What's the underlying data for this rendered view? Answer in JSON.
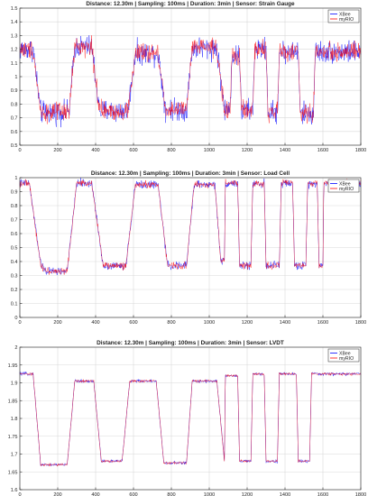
{
  "chart_data": [
    {
      "type": "line",
      "title": "Distance: 12.30m | Sampling: 100ms | Duration: 3min | Sensor: Strain Gauge",
      "xlabel": "",
      "ylabel": "",
      "xlim": [
        0,
        1800
      ],
      "ylim": [
        0.5,
        1.5
      ],
      "xticks": [
        0,
        200,
        400,
        600,
        800,
        1000,
        1200,
        1400,
        1600,
        1800
      ],
      "yticks": [
        0.5,
        0.6,
        0.7,
        0.8,
        0.9,
        1,
        1.1,
        1.2,
        1.3,
        1.4,
        1.5
      ],
      "grid": true,
      "legend": "top-right",
      "series": [
        {
          "name": "XBee",
          "color": "#0000ff"
        },
        {
          "name": "myRIO",
          "color": "#ff0000"
        }
      ],
      "noise": 0.07,
      "profile": [
        [
          0,
          1.2
        ],
        [
          70,
          1.2
        ],
        [
          110,
          0.74
        ],
        [
          260,
          0.74
        ],
        [
          290,
          1.22
        ],
        [
          380,
          1.22
        ],
        [
          420,
          0.75
        ],
        [
          570,
          0.75
        ],
        [
          610,
          1.17
        ],
        [
          730,
          1.17
        ],
        [
          770,
          0.76
        ],
        [
          880,
          0.76
        ],
        [
          910,
          1.21
        ],
        [
          1040,
          1.21
        ],
        [
          1080,
          0.76
        ],
        [
          1110,
          0.76
        ],
        [
          1120,
          1.15
        ],
        [
          1160,
          1.15
        ],
        [
          1170,
          0.75
        ],
        [
          1230,
          0.75
        ],
        [
          1240,
          1.2
        ],
        [
          1300,
          1.2
        ],
        [
          1310,
          0.74
        ],
        [
          1360,
          0.74
        ],
        [
          1370,
          1.18
        ],
        [
          1470,
          1.18
        ],
        [
          1480,
          0.73
        ],
        [
          1550,
          0.73
        ],
        [
          1560,
          1.18
        ],
        [
          1800,
          1.18
        ]
      ]
    },
    {
      "type": "line",
      "title": "Distance: 12.30m | Sampling: 100ms | Duration: 3min | Sensor: Load Cell",
      "xlabel": "",
      "ylabel": "",
      "xlim": [
        0,
        1800
      ],
      "ylim": [
        0,
        1
      ],
      "xticks": [
        0,
        200,
        400,
        600,
        800,
        1000,
        1200,
        1400,
        1600,
        1800
      ],
      "yticks": [
        0,
        0.1,
        0.2,
        0.3,
        0.4,
        0.5,
        0.6,
        0.7,
        0.8,
        0.9,
        1
      ],
      "grid": true,
      "legend": "top-right",
      "series": [
        {
          "name": "XBee",
          "color": "#0000ff"
        },
        {
          "name": "myRIO",
          "color": "#ff0000"
        }
      ],
      "noise": 0.025,
      "profile": [
        [
          0,
          0.96
        ],
        [
          50,
          0.96
        ],
        [
          110,
          0.38
        ],
        [
          140,
          0.33
        ],
        [
          250,
          0.33
        ],
        [
          300,
          0.96
        ],
        [
          380,
          0.96
        ],
        [
          440,
          0.37
        ],
        [
          560,
          0.37
        ],
        [
          610,
          0.95
        ],
        [
          730,
          0.95
        ],
        [
          780,
          0.37
        ],
        [
          880,
          0.37
        ],
        [
          920,
          0.95
        ],
        [
          1030,
          0.95
        ],
        [
          1060,
          0.41
        ],
        [
          1080,
          0.41
        ],
        [
          1085,
          0.96
        ],
        [
          1150,
          0.96
        ],
        [
          1160,
          0.37
        ],
        [
          1220,
          0.37
        ],
        [
          1230,
          0.96
        ],
        [
          1290,
          0.96
        ],
        [
          1300,
          0.37
        ],
        [
          1370,
          0.37
        ],
        [
          1380,
          0.96
        ],
        [
          1440,
          0.96
        ],
        [
          1450,
          0.37
        ],
        [
          1510,
          0.37
        ],
        [
          1520,
          0.96
        ],
        [
          1570,
          0.96
        ],
        [
          1580,
          0.37
        ],
        [
          1600,
          0.37
        ],
        [
          1605,
          0.96
        ],
        [
          1800,
          0.96
        ]
      ]
    },
    {
      "type": "line",
      "title": "Distance: 12.30m | Sampling: 100ms | Duration: 3min | Sensor: LVDT",
      "xlabel": "",
      "ylabel": "",
      "xlim": [
        0,
        1800
      ],
      "ylim": [
        1.6,
        2
      ],
      "xticks": [
        0,
        200,
        400,
        600,
        800,
        1000,
        1200,
        1400,
        1600,
        1800
      ],
      "yticks": [
        1.6,
        1.65,
        1.7,
        1.75,
        1.8,
        1.85,
        1.9,
        1.95,
        2
      ],
      "grid": true,
      "legend": "top-right",
      "series": [
        {
          "name": "XBee",
          "color": "#0000ff"
        },
        {
          "name": "myRIO",
          "color": "#ff0000"
        }
      ],
      "noise": 0.004,
      "profile": [
        [
          0,
          1.925
        ],
        [
          70,
          1.925
        ],
        [
          110,
          1.67
        ],
        [
          250,
          1.67
        ],
        [
          290,
          1.905
        ],
        [
          390,
          1.905
        ],
        [
          430,
          1.68
        ],
        [
          540,
          1.68
        ],
        [
          580,
          1.905
        ],
        [
          720,
          1.905
        ],
        [
          760,
          1.675
        ],
        [
          880,
          1.675
        ],
        [
          910,
          1.905
        ],
        [
          1040,
          1.905
        ],
        [
          1080,
          1.68
        ],
        [
          1085,
          1.92
        ],
        [
          1150,
          1.92
        ],
        [
          1160,
          1.68
        ],
        [
          1220,
          1.68
        ],
        [
          1230,
          1.925
        ],
        [
          1290,
          1.925
        ],
        [
          1300,
          1.68
        ],
        [
          1360,
          1.68
        ],
        [
          1370,
          1.925
        ],
        [
          1460,
          1.925
        ],
        [
          1470,
          1.68
        ],
        [
          1530,
          1.68
        ],
        [
          1540,
          1.925
        ],
        [
          1800,
          1.925
        ]
      ]
    }
  ]
}
